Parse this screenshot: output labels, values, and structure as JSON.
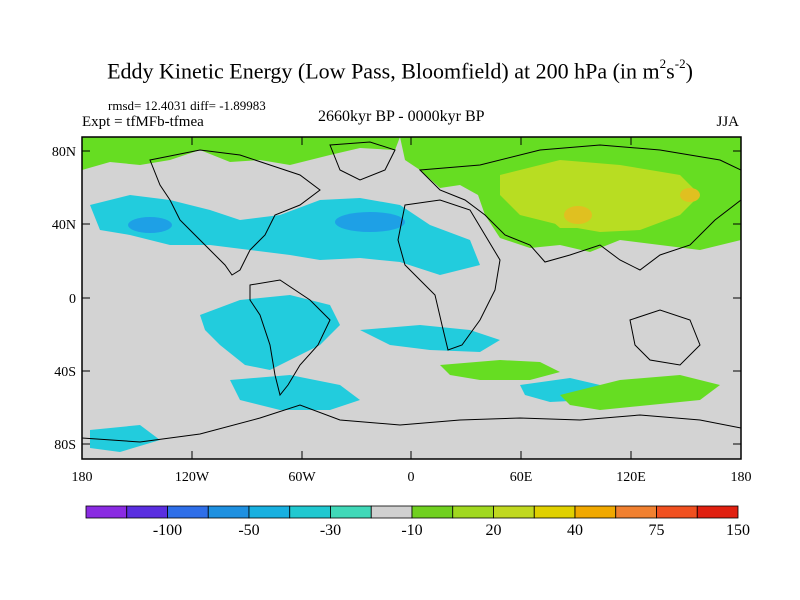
{
  "title": {
    "main": "Eddy Kinetic Energy (Low Pass, Bloomfield) at 200 hPa (in m",
    "sup1": "2",
    "mid": "s",
    "sup2": "-2",
    "end": ")"
  },
  "stats": "rmsd= 12.4031 diff= -1.89983",
  "experiment": "Expt = tfMFb-tfmea",
  "period": "2660kyr BP - 0000kyr BP",
  "season": "JJA",
  "lat_ticks": [
    "80N",
    "40N",
    "0",
    "40S",
    "80S"
  ],
  "lon_ticks": [
    "180",
    "120W",
    "60W",
    "0",
    "60E",
    "120E",
    "180"
  ],
  "colorbar": {
    "colors": [
      "#8a2be2",
      "#5a2ee0",
      "#2e6ee8",
      "#1e90e0",
      "#18b0e0",
      "#20c8d0",
      "#40d8b8",
      "#d0d0d0",
      "#70d020",
      "#a0d820",
      "#c0d820",
      "#e0d000",
      "#f0a800",
      "#f08030",
      "#f05020",
      "#e02010"
    ],
    "labels": [
      "-100",
      "-50",
      "-30",
      "-10",
      "20",
      "40",
      "75",
      "150"
    ]
  },
  "legend_colors": {
    "land_neutral": "#d3d3d3",
    "positive_green": "#66dd22",
    "positive_yellow": "#b8dd22",
    "positive_orange": "#e0c020",
    "negative_cyan": "#22ccdd",
    "negative_blue": "#1ea0e6"
  }
}
